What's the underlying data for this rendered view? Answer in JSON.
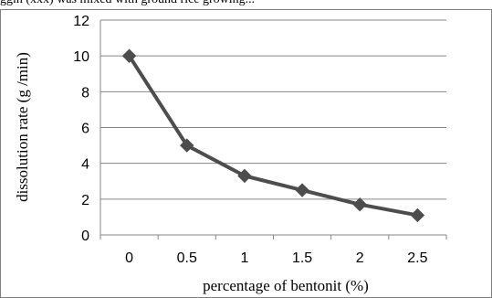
{
  "top_text": "ggin (xxx) was mixed with ground rice growing...",
  "chart_data": {
    "type": "line",
    "title": "",
    "xlabel": "percentage of bentonit (%)",
    "ylabel": "dissolution rate (g /min)",
    "x": [
      "0",
      "0.5",
      "1",
      "1.5",
      "2",
      "2.5"
    ],
    "series": [
      {
        "values": [
          10,
          5,
          3.3,
          2.5,
          1.7,
          1.1
        ]
      }
    ],
    "ylim": [
      0,
      12
    ],
    "yticks": [
      0,
      2,
      4,
      6,
      8,
      10,
      12
    ],
    "grid": "horizontal",
    "legend": "none",
    "marker": "diamond",
    "colors": {
      "line": "#4d4d4d",
      "grid": "#868686",
      "axis": "#868686"
    }
  }
}
